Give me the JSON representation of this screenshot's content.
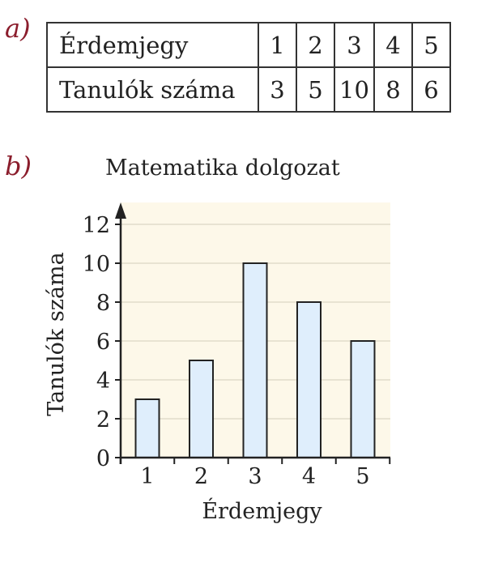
{
  "part_a_label": "a)",
  "part_b_label": "b)",
  "table": {
    "row_headers": [
      "Érdemjegy",
      "Tanulók száma"
    ],
    "grades": [
      "1",
      "2",
      "3",
      "4",
      "5"
    ],
    "counts": [
      "3",
      "5",
      "10",
      "8",
      "6"
    ]
  },
  "chart_data": {
    "type": "bar",
    "title": "Matematika dolgozat",
    "xlabel": "Érdemjegy",
    "ylabel": "Tanulók száma",
    "categories": [
      "1",
      "2",
      "3",
      "4",
      "5"
    ],
    "values": [
      3,
      5,
      10,
      8,
      6
    ],
    "ylim": [
      0,
      13
    ],
    "yticks": [
      0,
      2,
      4,
      6,
      8,
      10,
      12
    ],
    "grid": true,
    "colors": {
      "bar_fill": "#dfeefc",
      "bar_stroke": "#222222",
      "plot_bg": "#fdf8e9",
      "grid": "#e2dccb",
      "label_accent": "#8b1d2c"
    }
  }
}
